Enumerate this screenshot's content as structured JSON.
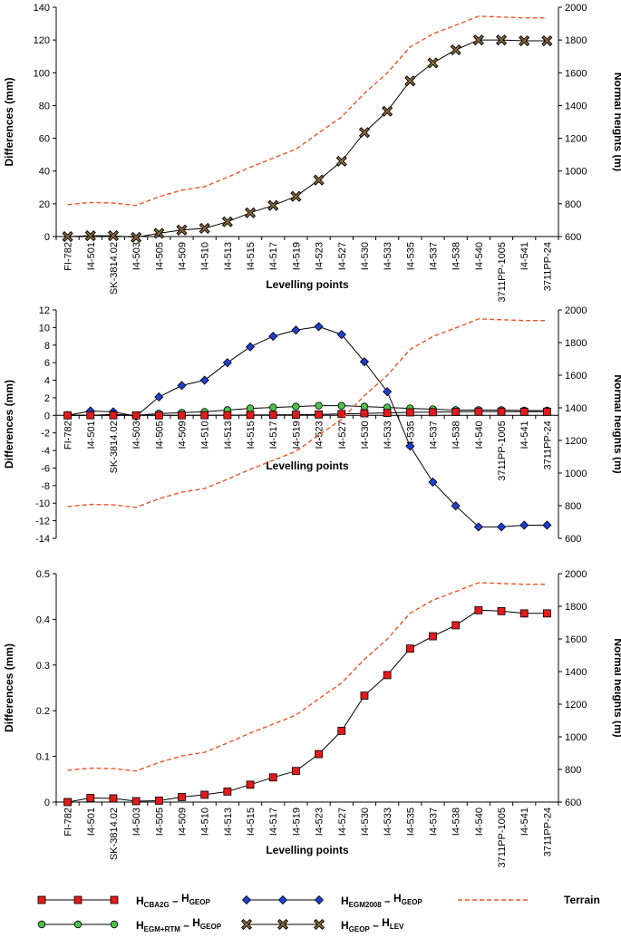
{
  "chart_data": [
    {
      "type": "line",
      "categories": [
        "FI-782",
        "I4-501",
        "SK-3814.02",
        "I4-503",
        "I4-505",
        "I4-509",
        "I4-510",
        "I4-513",
        "I4-515",
        "I4-517",
        "I4-519",
        "I4-523",
        "I4-527",
        "I4-530",
        "I4-533",
        "I4-535",
        "I4-537",
        "I4-538",
        "I4-540",
        "3711PP-1005",
        "I4-541",
        "3711PP-24"
      ],
      "xlabel": "Levelling points",
      "ylabel": "Differences (mm)",
      "ylim": [
        0,
        140
      ],
      "yticks": [
        "0",
        "20",
        "40",
        "60",
        "80",
        "100",
        "120",
        "140"
      ],
      "y2label": "Normal heights (m)",
      "y2lim": [
        600,
        2000
      ],
      "y2ticks": [
        "600",
        "800",
        "1000",
        "1200",
        "1400",
        "1600",
        "1800",
        "2000"
      ],
      "series": [
        {
          "key": "geop_lev",
          "values": [
            0,
            0.5,
            0.5,
            -0.5,
            2,
            4,
            5,
            9,
            14.5,
            19,
            24.5,
            34.5,
            46,
            63.5,
            76.5,
            95,
            106,
            114,
            120,
            120,
            119.5,
            119.5
          ]
        },
        {
          "key": "terrain",
          "axis": "right",
          "values": [
            795,
            808,
            805,
            790,
            843,
            883,
            905,
            962,
            1023,
            1078,
            1133,
            1233,
            1330,
            1475,
            1598,
            1757,
            1838,
            1890,
            1945,
            1940,
            1935,
            1935
          ]
        }
      ]
    },
    {
      "type": "line",
      "categories": [
        "FI-782",
        "I4-501",
        "SK-3814.02",
        "I4-503",
        "I4-505",
        "I4-509",
        "I4-510",
        "I4-513",
        "I4-515",
        "I4-517",
        "I4-519",
        "I4-523",
        "I4-527",
        "I4-530",
        "I4-533",
        "I4-535",
        "I4-537",
        "I4-538",
        "I4-540",
        "3711PP-1005",
        "I4-541",
        "3711PP-24"
      ],
      "xlabel": "Levelling points",
      "ylabel": "Differences (mm)",
      "ylim": [
        -14,
        12
      ],
      "yticks": [
        "-14",
        "-12",
        "-10",
        "-8",
        "-6",
        "-4",
        "-2",
        "0",
        "2",
        "4",
        "6",
        "8",
        "10",
        "12"
      ],
      "y2label": "Normal heights (m)",
      "y2lim": [
        600,
        2000
      ],
      "y2ticks": [
        "600",
        "800",
        "1000",
        "1200",
        "1400",
        "1600",
        "1800",
        "2000"
      ],
      "series": [
        {
          "key": "egm2008",
          "values": [
            0,
            0.5,
            0.4,
            -0.1,
            2.1,
            3.4,
            4,
            6,
            7.8,
            9,
            9.7,
            10.1,
            9.2,
            6.1,
            2.7,
            -3.5,
            -7.6,
            -10.3,
            -12.7,
            -12.7,
            -12.5,
            -12.5
          ]
        },
        {
          "key": "egmrtm",
          "values": [
            0,
            0,
            0.1,
            0,
            0.2,
            0.3,
            0.4,
            0.6,
            0.8,
            0.9,
            1,
            1.1,
            1.1,
            1,
            0.9,
            0.8,
            0.7,
            0.6,
            0.6,
            0.6,
            0.55,
            0.55
          ]
        },
        {
          "key": "cba2g",
          "values": [
            0,
            0.01,
            0.01,
            0,
            0,
            0.01,
            0.02,
            0.02,
            0.04,
            0.05,
            0.07,
            0.1,
            0.16,
            0.23,
            0.28,
            0.34,
            0.36,
            0.39,
            0.42,
            0.42,
            0.41,
            0.41
          ]
        },
        {
          "key": "terrain",
          "axis": "right",
          "values": [
            795,
            808,
            805,
            790,
            843,
            883,
            905,
            962,
            1023,
            1078,
            1133,
            1233,
            1330,
            1475,
            1598,
            1757,
            1838,
            1890,
            1945,
            1940,
            1935,
            1935
          ]
        }
      ]
    },
    {
      "type": "line",
      "categories": [
        "FI-782",
        "I4-501",
        "SK-3814.02",
        "I4-503",
        "I4-505",
        "I4-509",
        "I4-510",
        "I4-513",
        "I4-515",
        "I4-517",
        "I4-519",
        "I4-523",
        "I4-527",
        "I4-530",
        "I4-533",
        "I4-535",
        "I4-537",
        "I4-538",
        "I4-540",
        "3711PP-1005",
        "I4-541",
        "3711PP-24"
      ],
      "xlabel": "Levelling points",
      "ylabel": "Differences (mm)",
      "ylim": [
        0,
        0.5
      ],
      "yticks": [
        "0",
        "0.1",
        "0.2",
        "0.3",
        "0.4",
        "0.5"
      ],
      "y2label": "Normal heights (m)",
      "y2lim": [
        600,
        2000
      ],
      "y2ticks": [
        "600",
        "800",
        "1000",
        "1200",
        "1400",
        "1600",
        "1800",
        "2000"
      ],
      "series": [
        {
          "key": "cba2g",
          "values": [
            0,
            0.009,
            0.008,
            0.002,
            0.003,
            0.011,
            0.016,
            0.023,
            0.038,
            0.054,
            0.068,
            0.105,
            0.156,
            0.233,
            0.278,
            0.336,
            0.363,
            0.387,
            0.42,
            0.418,
            0.413,
            0.413
          ]
        },
        {
          "key": "terrain",
          "axis": "right",
          "values": [
            795,
            808,
            805,
            790,
            843,
            883,
            905,
            962,
            1023,
            1078,
            1133,
            1233,
            1330,
            1475,
            1598,
            1757,
            1838,
            1890,
            1945,
            1940,
            1935,
            1935
          ]
        }
      ]
    }
  ],
  "legend": {
    "items": [
      {
        "key": "cba2g",
        "base1": "H",
        "sub1": "CBA2G",
        "base2": "H",
        "sub2": "GEOP",
        "marker": "square",
        "color": "#e31a1c"
      },
      {
        "key": "egm2008",
        "base1": "H",
        "sub1": "EGM2008",
        "base2": "H",
        "sub2": "GEOP",
        "marker": "diamond",
        "color": "#1f3fcf"
      },
      {
        "key": "terrain",
        "label": "Terrain",
        "marker": "dashed",
        "color": "#e8562a"
      },
      {
        "key": "egmrtm",
        "base1": "H",
        "sub1": "EGM+RTM",
        "base2": "H",
        "sub2": "GEOP",
        "marker": "circle",
        "color": "#4cc24a"
      },
      {
        "key": "geop_lev",
        "base1": "H",
        "sub1": "GEOP",
        "base2": "H",
        "sub2": "LEV",
        "marker": "cross",
        "color": "#8a6a3a"
      }
    ],
    "dash": "–"
  },
  "colors": {
    "cba2g": "#e31a1c",
    "egm2008": "#1f3fcf",
    "egmrtm": "#4cc24a",
    "geop_lev": "#8a6a3a",
    "terrain": "#e8562a"
  }
}
